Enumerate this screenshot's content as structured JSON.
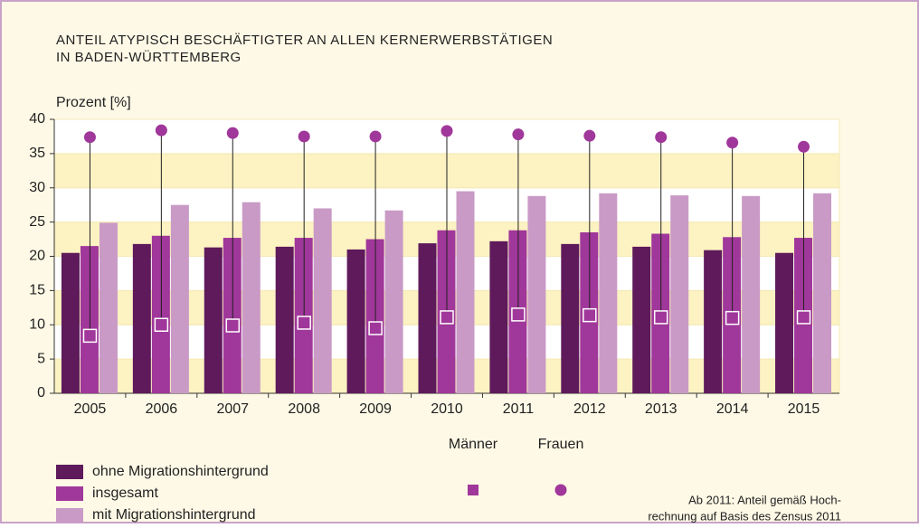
{
  "chart_data": {
    "type": "bar",
    "title": [
      "ANTEIL ATYPISCH BESCHÄFTIGTER AN ALLEN KERNERWERBSTÄTIGEN",
      "IN BADEN-WÜRTTEMBERG"
    ],
    "y_label": "Prozent [%]",
    "categories": [
      "2005",
      "2006",
      "2007",
      "2008",
      "2009",
      "2010",
      "2011",
      "2012",
      "2013",
      "2014",
      "2015"
    ],
    "series": [
      {
        "name": "ohne Migrationshintergrund",
        "color": "#5e1a5b",
        "values": [
          20.5,
          21.8,
          21.3,
          21.4,
          21.0,
          21.9,
          22.2,
          21.8,
          21.4,
          20.9,
          20.5
        ]
      },
      {
        "name": "insgesamt",
        "color": "#a0379a",
        "values": [
          21.5,
          23.0,
          22.7,
          22.7,
          22.5,
          23.8,
          23.8,
          23.5,
          23.3,
          22.8,
          22.7
        ]
      },
      {
        "name": "mit Migrationshintergrund",
        "color": "#c99ac6",
        "values": [
          24.9,
          27.5,
          27.9,
          27.0,
          26.7,
          29.5,
          28.8,
          29.2,
          28.9,
          28.8,
          29.2
        ]
      }
    ],
    "markers": [
      {
        "name": "Männer",
        "marker": "square",
        "color": "#a0379a",
        "values": [
          8.4,
          10.0,
          9.9,
          10.3,
          9.5,
          11.1,
          11.5,
          11.4,
          11.1,
          11.0,
          11.1
        ]
      },
      {
        "name": "Frauen",
        "marker": "circle",
        "color": "#a0379a",
        "values": [
          37.4,
          38.4,
          38.0,
          37.5,
          37.5,
          38.3,
          37.8,
          37.6,
          37.4,
          36.6,
          36.0
        ]
      }
    ],
    "ylim": [
      0,
      40
    ],
    "yticks": [
      0,
      5,
      10,
      15,
      20,
      25,
      30,
      35,
      40
    ],
    "note": [
      "Ab 2011: Anteil gemäß Hoch-",
      "rechnung auf Basis des Zensus 2011"
    ]
  }
}
